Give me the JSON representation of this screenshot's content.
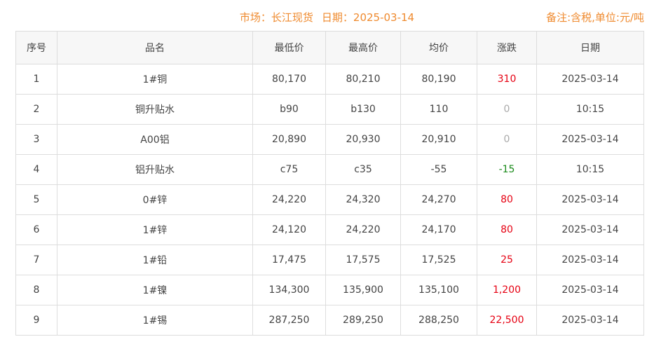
{
  "header": {
    "market": "市场：长江现货",
    "date": "日期：2025-03-14",
    "note": "备注:含税,单位:元/吨"
  },
  "colors": {
    "accent": "#ef8a2e",
    "up": "#e60012",
    "down": "#1a8a1a",
    "flat": "#aaaaaa"
  },
  "columns": [
    "序号",
    "品名",
    "最低价",
    "最高价",
    "均价",
    "涨跌",
    "日期"
  ],
  "rows": [
    [
      "1",
      "1#铜",
      "80,170",
      "80,210",
      "80,190",
      "310",
      "2025-03-14"
    ],
    [
      "2",
      "铜升贴水",
      "b90",
      "b130",
      "110",
      "0",
      "10:15"
    ],
    [
      "3",
      "A00铝",
      "20,890",
      "20,930",
      "20,910",
      "0",
      "2025-03-14"
    ],
    [
      "4",
      "铝升贴水",
      "c75",
      "c35",
      "-55",
      "-15",
      "10:15"
    ],
    [
      "5",
      "0#锌",
      "24,220",
      "24,320",
      "24,270",
      "80",
      "2025-03-14"
    ],
    [
      "6",
      "1#锌",
      "24,120",
      "24,220",
      "24,170",
      "80",
      "2025-03-14"
    ],
    [
      "7",
      "1#铅",
      "17,475",
      "17,575",
      "17,525",
      "25",
      "2025-03-14"
    ],
    [
      "8",
      "1#镍",
      "134,300",
      "135,900",
      "135,100",
      "1,200",
      "2025-03-14"
    ],
    [
      "9",
      "1#锡",
      "287,250",
      "289,250",
      "288,250",
      "22,500",
      "2025-03-14"
    ]
  ]
}
